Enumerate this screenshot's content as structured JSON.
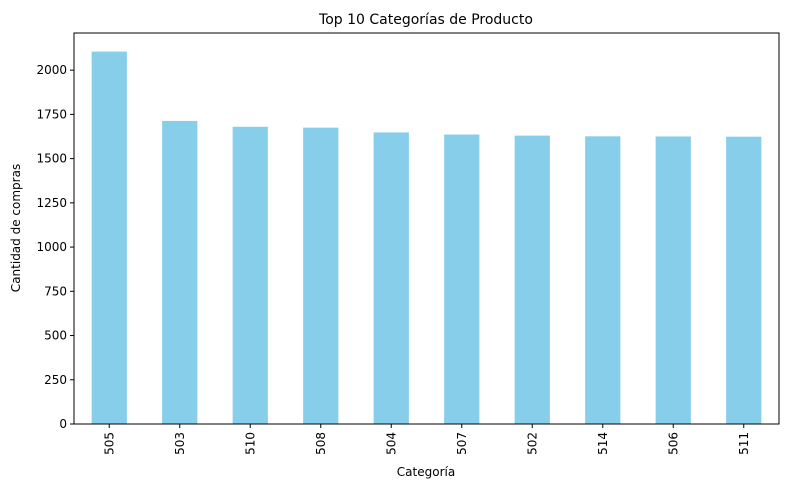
{
  "chart_data": {
    "type": "bar",
    "title": "Top 10 Categorías de Producto",
    "xlabel": "Categoría",
    "ylabel": "Cantidad de compras",
    "categories": [
      "505",
      "503",
      "510",
      "508",
      "504",
      "507",
      "502",
      "514",
      "506",
      "511"
    ],
    "values": [
      2105,
      1713,
      1680,
      1675,
      1648,
      1636,
      1630,
      1626,
      1625,
      1624
    ],
    "ylim": [
      0,
      2210
    ],
    "yticks": [
      0,
      250,
      500,
      750,
      1000,
      1250,
      1500,
      1750,
      2000
    ],
    "grid": false,
    "bar_color": "#87CEEB"
  }
}
